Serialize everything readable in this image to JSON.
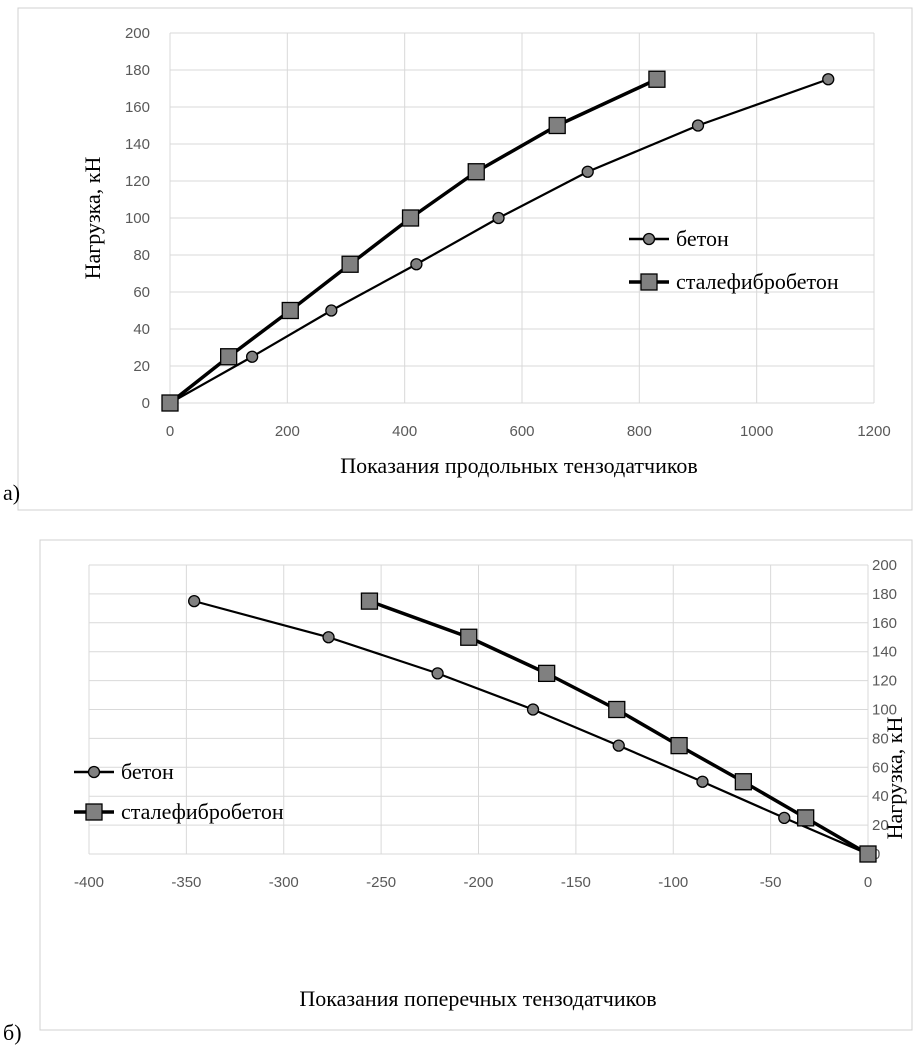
{
  "chart_data": [
    {
      "type": "line",
      "panel_label": "а)",
      "xlabel": "Показания продольных тензодатчиков",
      "ylabel": "Нагрузка, кН",
      "xlim": [
        0,
        1200
      ],
      "ylim": [
        0,
        200
      ],
      "xticks": [
        0,
        200,
        400,
        600,
        800,
        1000,
        1200
      ],
      "yticks": [
        0,
        20,
        40,
        60,
        80,
        100,
        120,
        140,
        160,
        180,
        200
      ],
      "grid": "vertical and horizontal",
      "legend_position": "right",
      "series": [
        {
          "name": "бетон",
          "marker": "circle",
          "x": [
            0,
            140,
            275,
            420,
            560,
            712,
            900,
            1122
          ],
          "y": [
            0,
            25,
            50,
            75,
            100,
            125,
            150,
            175
          ]
        },
        {
          "name": "сталефибробетон",
          "marker": "square",
          "x": [
            0,
            100,
            205,
            307,
            410,
            522,
            660,
            830
          ],
          "y": [
            0,
            25,
            50,
            75,
            100,
            125,
            150,
            175
          ]
        }
      ]
    },
    {
      "type": "line",
      "panel_label": "б)",
      "xlabel": "Показания поперечных тензодатчиков",
      "ylabel": "Нагрузка, кН",
      "xlim": [
        -400,
        0
      ],
      "ylim": [
        0,
        200
      ],
      "xticks": [
        -400,
        -350,
        -300,
        -250,
        -200,
        -150,
        -100,
        -50,
        0
      ],
      "yticks": [
        0,
        20,
        40,
        60,
        80,
        100,
        120,
        140,
        160,
        180,
        200
      ],
      "grid": "vertical and horizontal",
      "legend_position": "left",
      "series": [
        {
          "name": "бетон",
          "marker": "circle",
          "x": [
            0,
            -43,
            -85,
            -128,
            -172,
            -221,
            -277,
            -346
          ],
          "y": [
            0,
            25,
            50,
            75,
            100,
            125,
            150,
            175
          ]
        },
        {
          "name": "сталефибробетон",
          "marker": "square",
          "x": [
            0,
            -32,
            -64,
            -97,
            -129,
            -165,
            -205,
            -256
          ],
          "y": [
            0,
            25,
            50,
            75,
            100,
            125,
            150,
            175
          ]
        }
      ]
    }
  ]
}
